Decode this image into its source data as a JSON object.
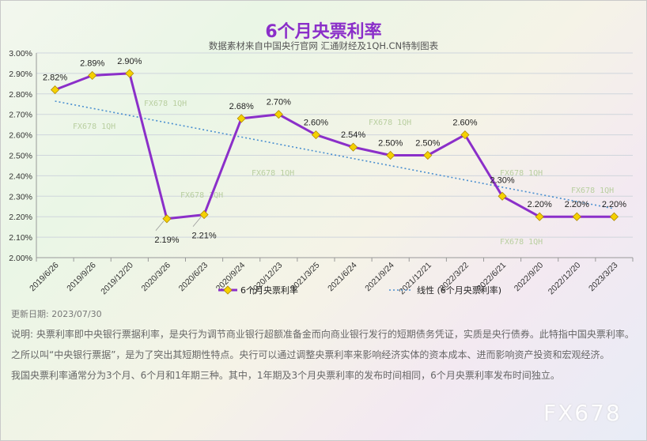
{
  "title": "6个月央票利率",
  "subtitle": "数据素材来自中国央行官网 汇通财经及1QH.CN特制图表",
  "update_date": "更新日期: 2023/07/30",
  "notes": [
    "说明: 央票利率即中央银行票据利率，是央行为调节商业银行超额准备金而向商业银行发行的短期债务凭证，实质是央行债券。此特指中国央票利率。",
    "之所以叫“中央银行票据”，是为了突出其短期性特点。央行可以通过调整央票利率来影响经济实体的资本成本、进而影响资产投资和宏观经济。",
    "我国央票利率通常分为3个月、6个月和1年期三种。其中，1年期及3个月央票利率的发布时间相同，6个月央票利率发布时间独立。"
  ],
  "brand": "FX678",
  "watermark": "FX678 1QH",
  "colors": {
    "series": "#8b2fc9",
    "marker": "#f5d100",
    "trend": "#4a8fd0",
    "title": "#8b2fc9"
  },
  "chart_data": {
    "type": "line",
    "categories": [
      "2019/6/26",
      "2019/9/26",
      "2019/12/20",
      "2020/3/26",
      "2020/6/23",
      "2020/9/24",
      "2020/12/23",
      "2021/3/25",
      "2021/6/24",
      "2021/9/24",
      "2021/12/21",
      "2022/3/22",
      "2022/6/21",
      "2022/9/20",
      "2022/12/20",
      "2023/3/23"
    ],
    "series": [
      {
        "name": "6个月央票利率",
        "values": [
          2.82,
          2.89,
          2.9,
          2.19,
          2.21,
          2.68,
          2.7,
          2.6,
          2.54,
          2.5,
          2.5,
          2.6,
          2.3,
          2.2,
          2.2,
          2.2
        ],
        "labels": [
          "2.82%",
          "2.89%",
          "2.90%",
          "2.19%",
          "2.21%",
          "2.68%",
          "2.70%",
          "2.60%",
          "2.54%",
          "2.50%",
          "2.50%",
          "2.60%",
          "2.30%",
          "2.20%",
          "2.20%",
          "2.20%"
        ]
      }
    ],
    "trendline": {
      "name": "线性 (6个月央票利率)",
      "type": "linear"
    },
    "ylim": [
      2.0,
      3.0
    ],
    "yticks": [
      "2.00%",
      "2.10%",
      "2.20%",
      "2.30%",
      "2.40%",
      "2.50%",
      "2.60%",
      "2.70%",
      "2.80%",
      "2.90%",
      "3.00%"
    ],
    "grid": true,
    "legend": "bottom"
  }
}
